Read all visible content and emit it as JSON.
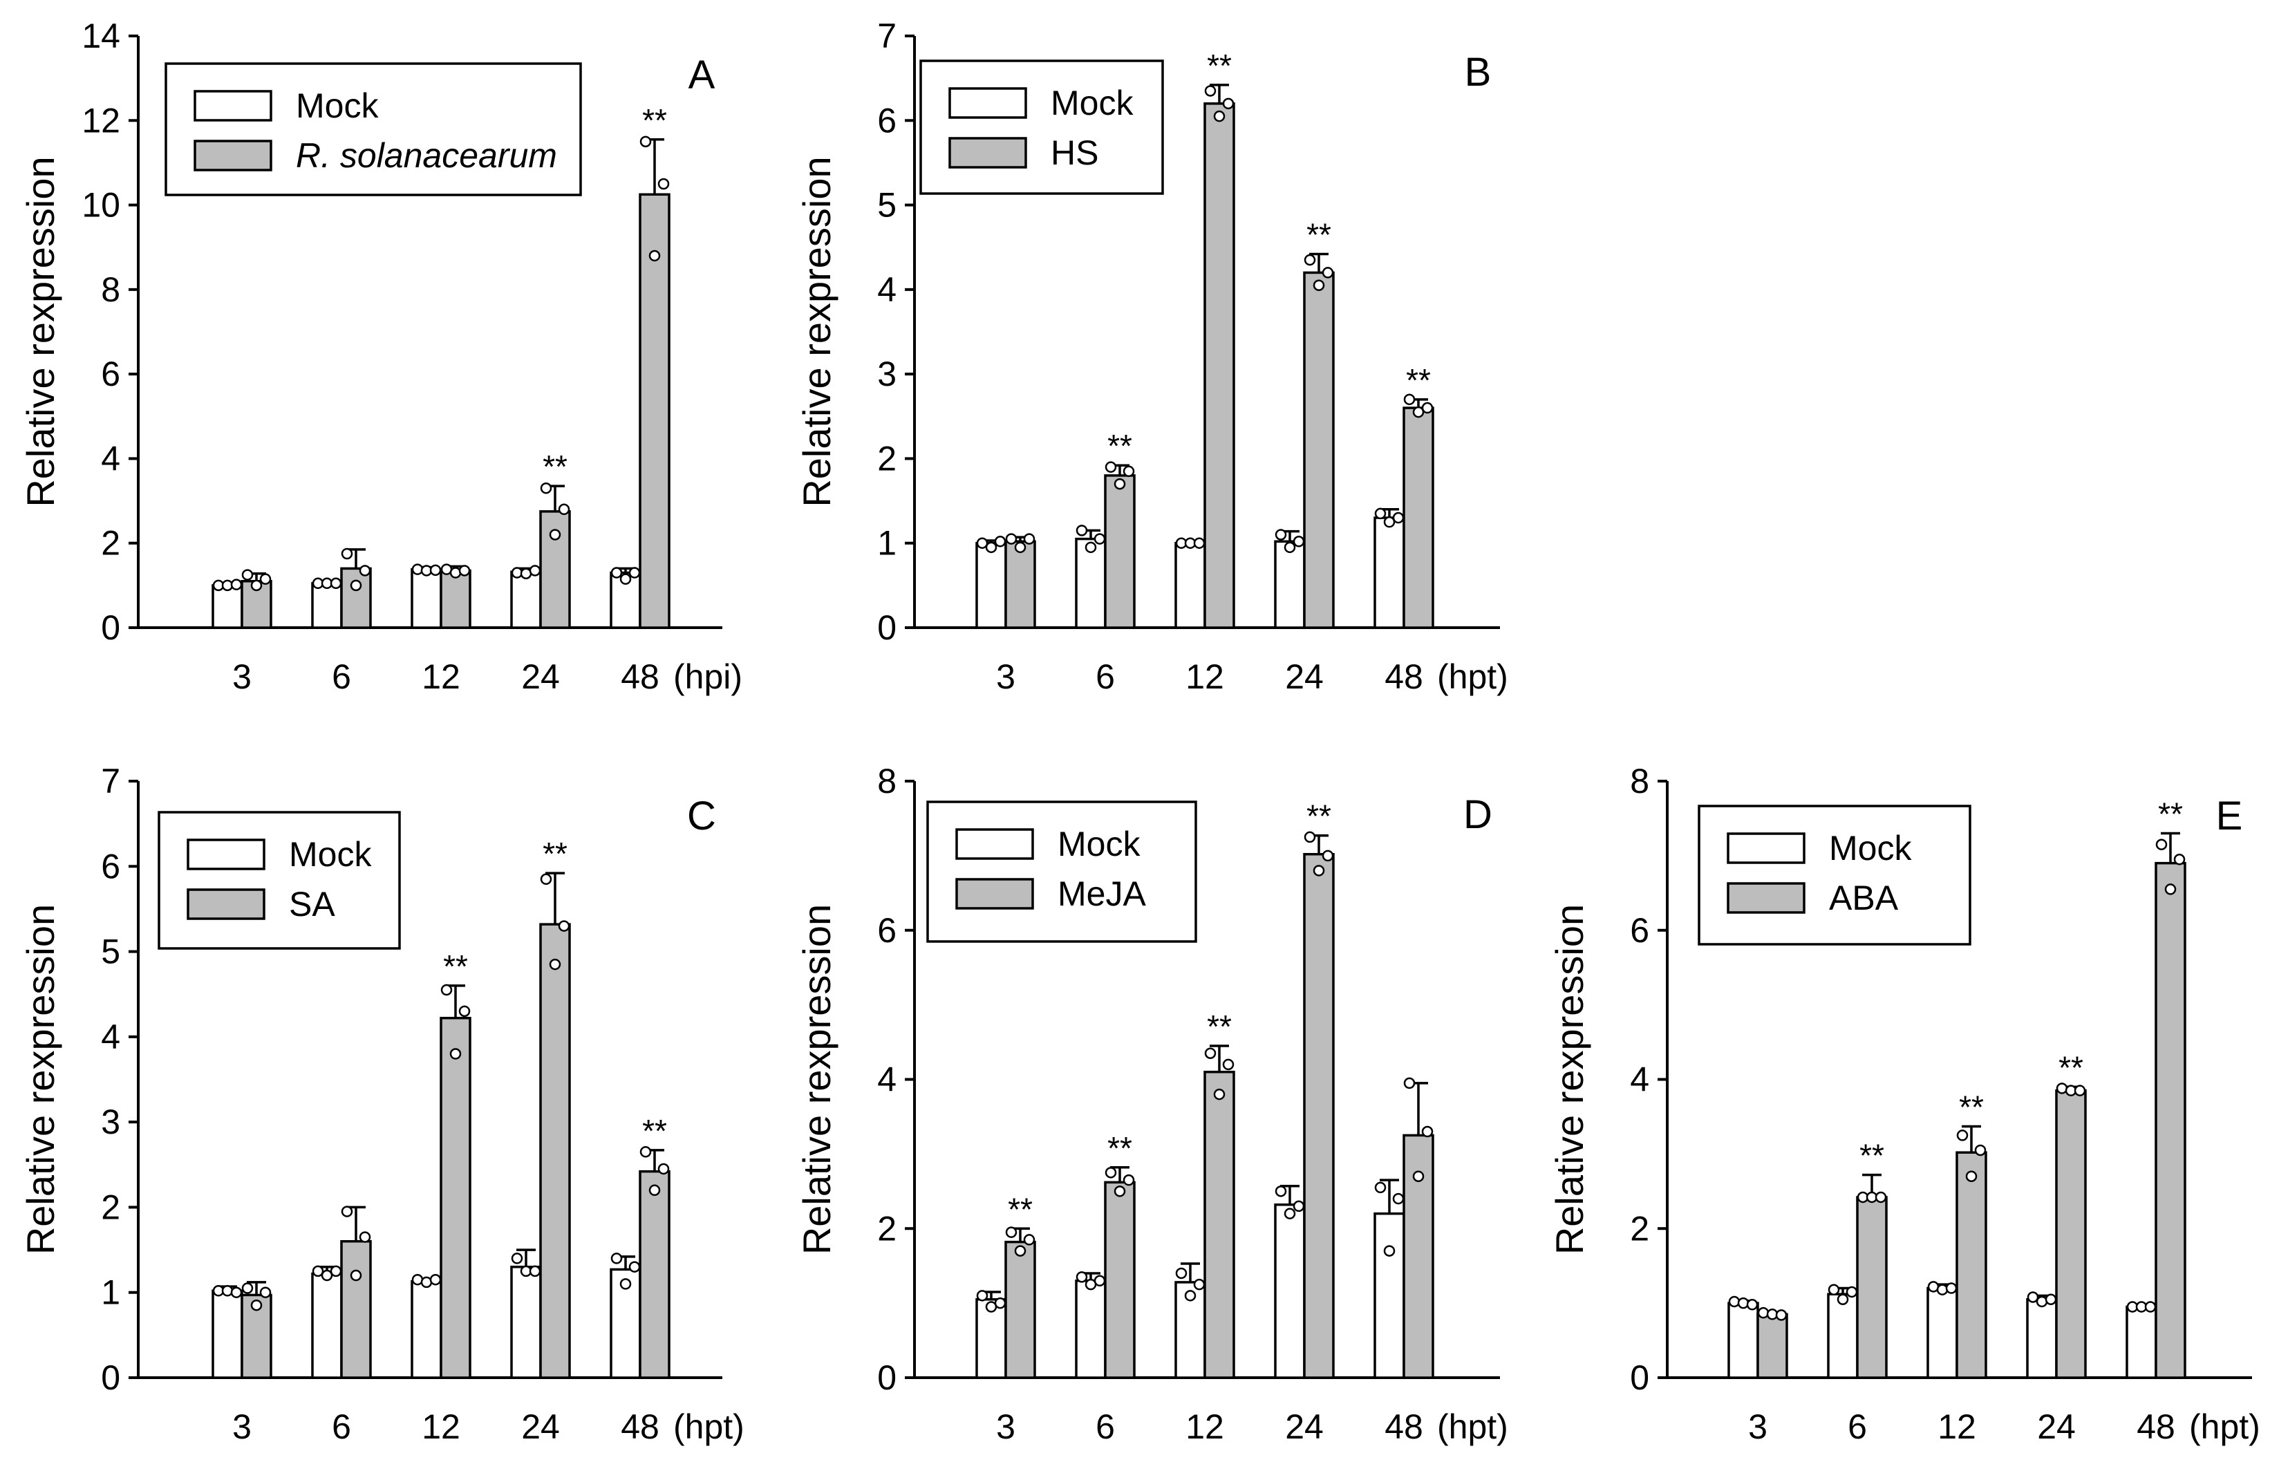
{
  "colors": {
    "mock": "#ffffff",
    "treatment": "#bdbdbd",
    "ink": "#000000"
  },
  "chart_data": [
    {
      "panel": "A",
      "type": "bar",
      "ylabel": "Relative rexpression",
      "x_unit": "(hpi)",
      "categories": [
        "3",
        "6",
        "12",
        "24",
        "48"
      ],
      "ylim": [
        0,
        14
      ],
      "yticks": [
        0,
        2,
        4,
        6,
        8,
        10,
        12,
        14
      ],
      "series": [
        {
          "name": "Mock",
          "values": [
            1.0,
            1.05,
            1.38,
            1.32,
            1.3
          ],
          "errors": [
            0.05,
            0.05,
            0.05,
            0.08,
            0.1
          ],
          "replicates": [
            [
              1.0,
              1.0,
              1.02
            ],
            [
              1.05,
              1.05,
              1.05
            ],
            [
              1.38,
              1.35,
              1.36
            ],
            [
              1.3,
              1.28,
              1.35
            ],
            [
              1.3,
              1.15,
              1.3
            ]
          ]
        },
        {
          "name": "R. solanacearum",
          "italic": true,
          "values": [
            1.1,
            1.4,
            1.35,
            2.75,
            10.25
          ],
          "errors": [
            0.18,
            0.45,
            0.1,
            0.6,
            1.3
          ],
          "replicates": [
            [
              1.25,
              1.0,
              1.15
            ],
            [
              1.75,
              1.0,
              1.35
            ],
            [
              1.38,
              1.3,
              1.35
            ],
            [
              3.3,
              2.2,
              2.8
            ],
            [
              11.5,
              8.8,
              10.5
            ]
          ]
        }
      ],
      "significance": [
        "",
        "",
        "",
        "**",
        "**"
      ]
    },
    {
      "panel": "B",
      "type": "bar",
      "ylabel": "Relative rexpression",
      "x_unit": "(hpt)",
      "categories": [
        "3",
        "6",
        "12",
        "24",
        "48"
      ],
      "ylim": [
        0,
        7
      ],
      "yticks": [
        0,
        1,
        2,
        3,
        4,
        5,
        6,
        7
      ],
      "series": [
        {
          "name": "Mock",
          "values": [
            1.0,
            1.05,
            1.0,
            1.02,
            1.3
          ],
          "errors": [
            0.03,
            0.1,
            0.02,
            0.12,
            0.1
          ],
          "replicates": [
            [
              1.0,
              0.95,
              1.02
            ],
            [
              1.15,
              0.95,
              1.05
            ],
            [
              1.0,
              1.0,
              1.0
            ],
            [
              1.1,
              0.95,
              1.02
            ],
            [
              1.35,
              1.25,
              1.3
            ]
          ]
        },
        {
          "name": "HS",
          "values": [
            1.02,
            1.8,
            6.2,
            4.2,
            2.6
          ],
          "errors": [
            0.05,
            0.12,
            0.22,
            0.22,
            0.1
          ],
          "replicates": [
            [
              1.05,
              0.95,
              1.05
            ],
            [
              1.9,
              1.7,
              1.85
            ],
            [
              6.35,
              6.05,
              6.2
            ],
            [
              4.35,
              4.05,
              4.2
            ],
            [
              2.7,
              2.55,
              2.6
            ]
          ]
        }
      ],
      "significance": [
        "",
        "**",
        "**",
        "**",
        "**"
      ]
    },
    {
      "panel": "C",
      "type": "bar",
      "ylabel": "Relative rexpression",
      "x_unit": "(hpt)",
      "categories": [
        "3",
        "6",
        "12",
        "24",
        "48"
      ],
      "ylim": [
        0,
        7
      ],
      "yticks": [
        0,
        1,
        2,
        3,
        4,
        5,
        6,
        7
      ],
      "series": [
        {
          "name": "Mock",
          "values": [
            1.02,
            1.22,
            1.13,
            1.3,
            1.27
          ],
          "errors": [
            0.05,
            0.08,
            0.02,
            0.2,
            0.15
          ],
          "replicates": [
            [
              1.02,
              1.02,
              1.0
            ],
            [
              1.25,
              1.2,
              1.25
            ],
            [
              1.15,
              1.12,
              1.15
            ],
            [
              1.4,
              1.25,
              1.25
            ],
            [
              1.4,
              1.1,
              1.3
            ]
          ]
        },
        {
          "name": "SA",
          "values": [
            0.97,
            1.6,
            4.22,
            5.32,
            2.42
          ],
          "errors": [
            0.15,
            0.4,
            0.38,
            0.6,
            0.25
          ],
          "replicates": [
            [
              1.05,
              0.85,
              1.0
            ],
            [
              1.95,
              1.2,
              1.65
            ],
            [
              4.55,
              3.8,
              4.3
            ],
            [
              5.85,
              4.85,
              5.3
            ],
            [
              2.65,
              2.2,
              2.45
            ]
          ]
        }
      ],
      "significance": [
        "",
        "",
        "**",
        "**",
        "**"
      ]
    },
    {
      "panel": "D",
      "type": "bar",
      "ylabel": "Relative rexpression",
      "x_unit": "(hpt)",
      "categories": [
        "3",
        "6",
        "12",
        "24",
        "48"
      ],
      "ylim": [
        0,
        8
      ],
      "yticks": [
        0,
        2,
        4,
        6,
        8
      ],
      "series": [
        {
          "name": "Mock",
          "values": [
            1.05,
            1.3,
            1.28,
            2.32,
            2.2
          ],
          "errors": [
            0.1,
            0.1,
            0.25,
            0.25,
            0.45
          ],
          "replicates": [
            [
              1.1,
              0.95,
              1.0
            ],
            [
              1.35,
              1.25,
              1.3
            ],
            [
              1.4,
              1.1,
              1.25
            ],
            [
              2.5,
              2.2,
              2.3
            ],
            [
              2.55,
              1.7,
              2.4
            ]
          ]
        },
        {
          "name": "MeJA",
          "values": [
            1.82,
            2.62,
            4.1,
            7.02,
            3.25
          ],
          "errors": [
            0.18,
            0.2,
            0.35,
            0.25,
            0.7
          ],
          "replicates": [
            [
              1.95,
              1.7,
              1.85
            ],
            [
              2.75,
              2.5,
              2.65
            ],
            [
              4.35,
              3.8,
              4.2
            ],
            [
              7.25,
              6.8,
              7.0
            ],
            [
              3.95,
              2.7,
              3.3
            ]
          ]
        }
      ],
      "significance": [
        "**",
        "**",
        "**",
        "**",
        ""
      ]
    },
    {
      "panel": "E",
      "type": "bar",
      "ylabel": "Relative rexpression",
      "x_unit": "(hpt)",
      "categories": [
        "3",
        "6",
        "12",
        "24",
        "48"
      ],
      "ylim": [
        0,
        8
      ],
      "yticks": [
        0,
        2,
        4,
        6,
        8
      ],
      "series": [
        {
          "name": "Mock",
          "values": [
            1.0,
            1.12,
            1.2,
            1.05,
            0.95
          ],
          "errors": [
            0.03,
            0.08,
            0.05,
            0.05,
            0.02
          ],
          "replicates": [
            [
              1.02,
              1.0,
              0.98
            ],
            [
              1.18,
              1.05,
              1.15
            ],
            [
              1.22,
              1.18,
              1.2
            ],
            [
              1.08,
              1.02,
              1.05
            ],
            [
              0.95,
              0.95,
              0.95
            ]
          ]
        },
        {
          "name": "ABA",
          "values": [
            0.85,
            2.42,
            3.02,
            3.85,
            6.9
          ],
          "errors": [
            0.02,
            0.3,
            0.35,
            0.05,
            0.4
          ],
          "replicates": [
            [
              0.87,
              0.85,
              0.84
            ],
            [
              2.42,
              2.42,
              2.42
            ],
            [
              3.25,
              2.7,
              3.05
            ],
            [
              3.88,
              3.85,
              3.85
            ],
            [
              7.15,
              6.55,
              6.95
            ]
          ]
        }
      ],
      "significance": [
        "",
        "**",
        "**",
        "**",
        "**"
      ]
    }
  ]
}
